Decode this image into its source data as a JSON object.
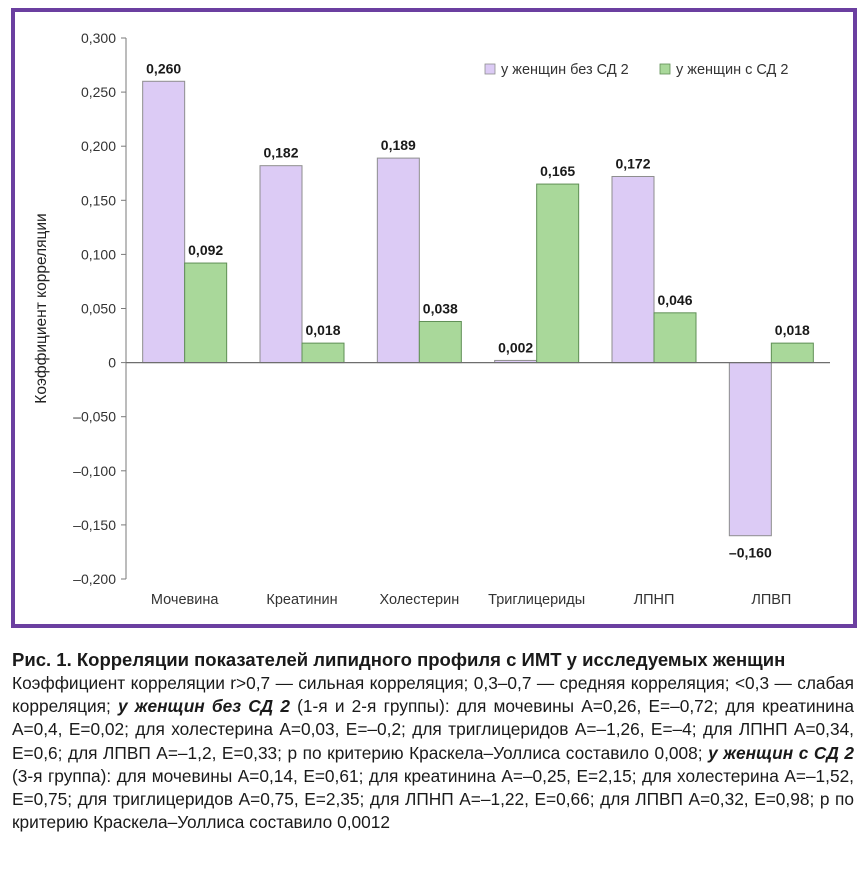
{
  "chart_data": {
    "type": "bar",
    "categories": [
      "Мочевина",
      "Креатинин",
      "Холестерин",
      "Триглицериды",
      "ЛПНП",
      "ЛПВП"
    ],
    "series": [
      {
        "name": "у женщин без СД 2",
        "values": [
          0.26,
          0.182,
          0.189,
          0.002,
          0.172,
          -0.16
        ],
        "labels": [
          "0,260",
          "0,182",
          "0,189",
          "0,002",
          "0,172",
          "–0,160"
        ],
        "color": "#dccbf5"
      },
      {
        "name": "у женщин с СД 2",
        "values": [
          0.092,
          0.018,
          0.038,
          0.165,
          0.046,
          0.018
        ],
        "labels": [
          "0,092",
          "0,018",
          "0,038",
          "0,165",
          "0,046",
          "0,018"
        ],
        "color": "#a9d89a"
      }
    ],
    "ylabel": "Коэффициент корреляции",
    "ylim": [
      -0.2,
      0.3
    ],
    "yticks": [
      0.3,
      0.25,
      0.2,
      0.15,
      0.1,
      0.05,
      0,
      -0.05,
      -0.1,
      -0.15,
      -0.2
    ],
    "ytick_labels": [
      "0,300",
      "0,250",
      "0,200",
      "0,150",
      "0,100",
      "0,050",
      "0",
      "–0,050",
      "–0,100",
      "–0,150",
      "–0,200"
    ],
    "legend_position": "top-right",
    "frame_color": "#6b3fa0"
  },
  "caption": {
    "title": "Рис. 1. Корреляции показателей липидного профиля с ИМТ у исследуемых женщин",
    "p1": "Коэффициент корреляции r>0,7 — сильная корреляция; 0,3–0,7 — средняя корреляция; <0,3 — слабая корреляция; ",
    "group1_label": "у женщин без СД 2",
    "p2": " (1-я и 2-я группы): для мочевины A=0,26, E=–0,72; для креатинина A=0,4, E=0,02; для холестерина A=0,03, E=–0,2; для триглицеридов A=–1,26, E=–4; для ЛПНП A=0,34, E=0,6; для ЛПВП A=–1,2, E=0,33; р по критерию Краскела–Уоллиса составило 0,008; ",
    "group2_label": "у женщин с СД 2",
    "p3": " (3-я группа): для мочевины A=0,14, E=0,61; для креатинина A=–0,25, E=2,15; для холестерина A=–1,52, E=0,75; для триглицеридов A=0,75, E=2,35; для ЛПНП A=–1,22, E=0,66; для ЛПВП A=0,32, E=0,98; р по критерию Краскела–Уоллиса составило 0,0012"
  }
}
